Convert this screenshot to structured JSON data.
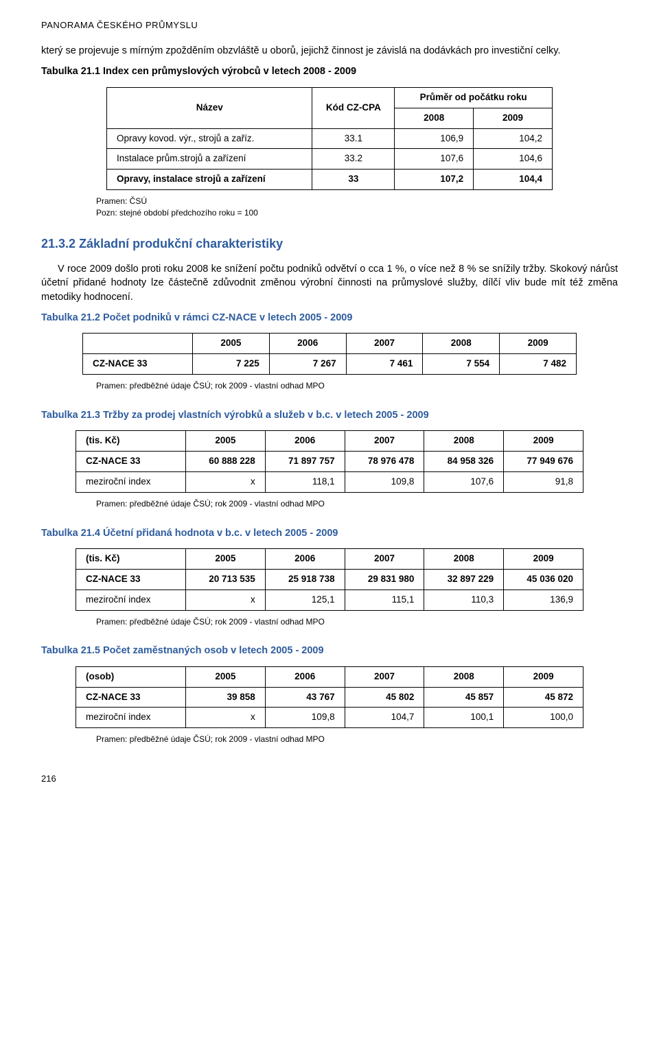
{
  "header": "PANORAMA ČESKÉHO PRŮMYSLU",
  "intro_para": "který se projevuje s mírným zpožděním obzvláště u oborů, jejichž činnost je závislá na dodávkách pro investiční celky.",
  "t211": {
    "title": "Tabulka 21.1 Index cen průmyslových výrobců v letech 2008 - 2009",
    "head_nazev": "Název",
    "head_kod": "Kód CZ-CPA",
    "head_prumer": "Průměr od počátku roku",
    "year_2008": "2008",
    "year_2009": "2009",
    "rows": [
      {
        "name": "Opravy kovod. výr., strojů a zaříz.",
        "kod": "33.1",
        "v2008": "106,9",
        "v2009": "104,2"
      },
      {
        "name": "Instalace prům.strojů a zařízení",
        "kod": "33.2",
        "v2008": "107,6",
        "v2009": "104,6"
      }
    ],
    "total": {
      "name": "Opravy, instalace strojů a zařízení",
      "kod": "33",
      "v2008": "107,2",
      "v2009": "104,4"
    },
    "src1": "Pramen: ČSÚ",
    "src2": "Pozn: stejné období předchozího roku = 100"
  },
  "sec_232": {
    "title": "21.3.2 Základní produkční charakteristiky",
    "para": "V roce 2009 došlo proti roku 2008 ke snížení počtu podniků odvětví o cca 1 %, o více než 8 % se snížily tržby. Skokový nárůst účetní přidané hodnoty lze částečně zdůvodnit změnou výrobní činnosti na průmyslové služby, dílčí vliv bude mít též změna metodiky hodnocení."
  },
  "years5": {
    "y2005": "2005",
    "y2006": "2006",
    "y2007": "2007",
    "y2008": "2008",
    "y2009": "2009"
  },
  "row_label_cz33": "CZ-NACE 33",
  "row_label_index": "meziroční index",
  "src_mpo": "Pramen: předběžné údaje ČSÚ; rok 2009 - vlastní odhad MPO",
  "t212": {
    "title": "Tabulka 21.2 Počet podniků v rámci CZ-NACE v letech 2005 - 2009",
    "vals": {
      "v2005": "7 225",
      "v2006": "7 267",
      "v2007": "7 461",
      "v2008": "7 554",
      "v2009": "7 482"
    }
  },
  "t213": {
    "title": "Tabulka 21.3 Tržby za prodej vlastních výrobků a služeb v b.c. v letech 2005 - 2009",
    "row_unit": "(tis. Kč)",
    "vals": {
      "v2005": "60 888 228",
      "v2006": "71 897 757",
      "v2007": "78 976 478",
      "v2008": "84 958 326",
      "v2009": "77 949 676"
    },
    "idx": {
      "v2005": "x",
      "v2006": "118,1",
      "v2007": "109,8",
      "v2008": "107,6",
      "v2009": "91,8"
    }
  },
  "t214": {
    "title": "Tabulka 21.4 Účetní přidaná hodnota v b.c. v letech 2005 - 2009",
    "row_unit": "(tis. Kč)",
    "vals": {
      "v2005": "20 713 535",
      "v2006": "25 918 738",
      "v2007": "29 831 980",
      "v2008": "32 897 229",
      "v2009": "45 036 020"
    },
    "idx": {
      "v2005": "x",
      "v2006": "125,1",
      "v2007": "115,1",
      "v2008": "110,3",
      "v2009": "136,9"
    }
  },
  "t215": {
    "title": "Tabulka 21.5 Počet  zaměstnaných osob v letech 2005 - 2009",
    "row_unit": "(osob)",
    "vals": {
      "v2005": "39 858",
      "v2006": "43 767",
      "v2007": "45 802",
      "v2008": "45 857",
      "v2009": "45 872"
    },
    "idx": {
      "v2005": "x",
      "v2006": "109,8",
      "v2007": "104,7",
      "v2008": "100,1",
      "v2009": "100,0"
    }
  },
  "page_num": "216"
}
